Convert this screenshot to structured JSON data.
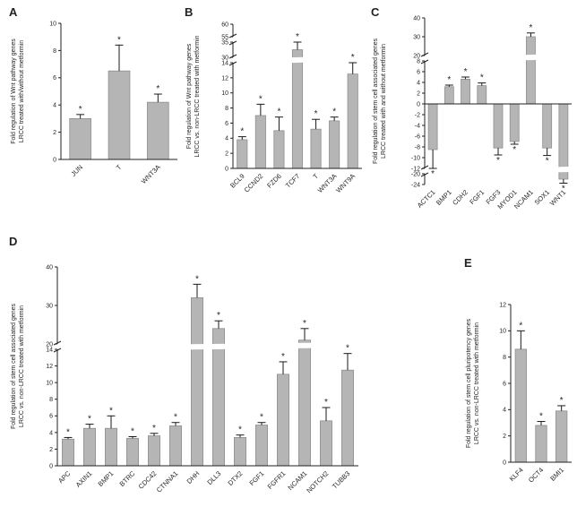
{
  "colors": {
    "bar": "#b5b5b5",
    "bar_edge": "#8f8f8f",
    "axis": "#231f20",
    "error": "#1a1a1a",
    "background": "#ffffff"
  },
  "chart_data": [
    {
      "panel": "A",
      "type": "bar",
      "title": "",
      "ylabel_lines": [
        "Fold regulation of Wnt pathway genes",
        "LRCC treated with/without metformin"
      ],
      "categories": [
        "JUN",
        "T",
        "WNT3A"
      ],
      "values": [
        3.0,
        6.5,
        4.2
      ],
      "errors": [
        0.3,
        1.9,
        0.6
      ],
      "significance": [
        "*",
        "*",
        "*"
      ],
      "yticks": [
        0,
        2,
        4,
        6,
        8,
        10
      ],
      "axis_segments": [
        [
          0,
          10
        ]
      ],
      "ylim": [
        0,
        10
      ]
    },
    {
      "panel": "B",
      "type": "bar",
      "title": "",
      "ylabel_lines": [
        "Fold regulation of Wnt pathway genes",
        "LRCC vs. non-LRCC  treated with metformin"
      ],
      "categories": [
        "BCL9",
        "CCND2",
        "FZD6",
        "TCF7",
        "T",
        "WNT3A",
        "WNT9A"
      ],
      "values": [
        3.8,
        7.0,
        5.0,
        32.5,
        5.2,
        6.3,
        12.5
      ],
      "errors": [
        0.4,
        1.5,
        1.8,
        2.5,
        1.3,
        0.5,
        1.5
      ],
      "significance": [
        "*",
        "*",
        "*",
        "*",
        "*",
        "*",
        "*"
      ],
      "yticks": [
        0,
        2,
        4,
        6,
        8,
        10,
        12,
        14,
        30,
        35,
        55,
        60
      ],
      "axis_segments": [
        [
          0,
          14
        ],
        [
          30,
          35
        ],
        [
          55,
          60
        ]
      ],
      "ylim": [
        0,
        60
      ]
    },
    {
      "panel": "C",
      "type": "bar",
      "title": "",
      "ylabel_lines": [
        "Fold regulation of stem cell associated genes",
        "LRCC treated with and without metformin"
      ],
      "categories": [
        "ACTC1",
        "BMP1",
        "CDH2",
        "FGF1",
        "FGF3",
        "MYOD1",
        "NCAM1",
        "SOX1",
        "WNT1"
      ],
      "values": [
        -8.5,
        3.2,
        4.6,
        3.4,
        -8.2,
        -7.0,
        30,
        -8.2,
        -22
      ],
      "errors": [
        3.5,
        0.3,
        0.4,
        0.5,
        1.3,
        0.5,
        2.0,
        1.4,
        1.5
      ],
      "significance": [
        "*",
        "*",
        "*",
        "*",
        "*",
        "*",
        "*",
        "*",
        "*"
      ],
      "yticks": [
        -24,
        -20,
        -12,
        -10,
        -8,
        -6,
        -4,
        -2,
        0,
        2,
        4,
        6,
        8,
        20,
        30,
        40
      ],
      "axis_segments": [
        [
          -24,
          -20
        ],
        [
          -12,
          8
        ],
        [
          20,
          40
        ]
      ],
      "ylim": [
        -24,
        40
      ]
    },
    {
      "panel": "D",
      "type": "bar",
      "title": "",
      "ylabel_lines": [
        "Fold regulation of stem cell associated genes",
        "LRCC vs. non-LRCC  treated with metformin"
      ],
      "categories": [
        "APC",
        "AXIN1",
        "BMP1",
        "BTRC",
        "CDC42",
        "CTNNA1",
        "DHH",
        "DLL3",
        "DTX2",
        "FGF1",
        "FGFR1",
        "NCAM1",
        "NOTCH2",
        "TUBB3"
      ],
      "values": [
        3.2,
        4.5,
        4.5,
        3.3,
        3.6,
        4.8,
        32,
        24,
        3.4,
        4.9,
        11,
        21,
        5.4,
        11.5
      ],
      "errors": [
        0.2,
        0.5,
        1.5,
        0.2,
        0.3,
        0.4,
        3.5,
        2,
        0.3,
        0.3,
        1.5,
        3,
        1.6,
        2
      ],
      "significance": [
        "*",
        "*",
        "*",
        "*",
        "*",
        "*",
        "*",
        "*",
        "*",
        "*",
        "*",
        "*",
        "*",
        "*"
      ],
      "yticks": [
        0,
        2,
        4,
        6,
        8,
        10,
        12,
        14,
        20,
        30,
        40
      ],
      "axis_segments": [
        [
          0,
          14
        ],
        [
          20,
          40
        ]
      ],
      "ylim": [
        0,
        40
      ]
    },
    {
      "panel": "E",
      "type": "bar",
      "title": "",
      "ylabel_lines": [
        "Fold regulation of stem cell pluripotency genes",
        "LRCC vs. non-LRCC  treated with metformin"
      ],
      "categories": [
        "KLF4",
        "OCT4",
        "BMI1"
      ],
      "values": [
        8.6,
        2.8,
        3.9
      ],
      "errors": [
        1.4,
        0.3,
        0.4
      ],
      "significance": [
        "*",
        "*",
        "*"
      ],
      "yticks": [
        0,
        2,
        4,
        6,
        8,
        10,
        12
      ],
      "axis_segments": [
        [
          0,
          12
        ]
      ],
      "ylim": [
        0,
        12
      ]
    }
  ]
}
